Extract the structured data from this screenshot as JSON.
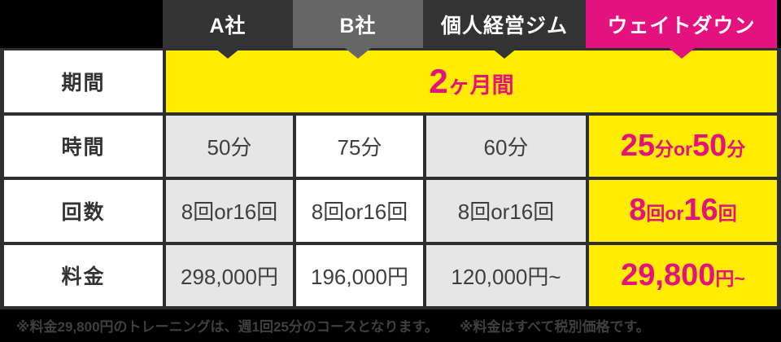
{
  "colors": {
    "page_bg": "#000000",
    "grid_line": "#2e2e2e",
    "header_dark": "#333333",
    "header_gray": "#666666",
    "pink": "#e3127e",
    "yellow": "#ffec00",
    "cell_gray": "#e6e6e6",
    "cell_white": "#ffffff",
    "text": "#3e3e3e",
    "footer_text": "#3f3f3f"
  },
  "header": {
    "columns": [
      {
        "label": "A社",
        "bg": "#333333",
        "text_color": "#ffffff"
      },
      {
        "label": "B社",
        "bg": "#666666",
        "text_color": "#ffffff"
      },
      {
        "label": "個人経営ジム",
        "bg": "#333333",
        "text_color": "#ffffff"
      },
      {
        "label": "ウェイトダウン",
        "bg": "#e3127e",
        "text_color": "#ffffff"
      }
    ]
  },
  "chart_data": {
    "type": "table",
    "title": "",
    "columns": [
      "A社",
      "B社",
      "個人経営ジム",
      "ウェイトダウン"
    ],
    "row_labels": [
      "期間",
      "時間",
      "回数",
      "料金"
    ],
    "rows": [
      {
        "label": "期間",
        "span_all": true,
        "values": [
          "2ヶ月間"
        ]
      },
      {
        "label": "時間",
        "values": [
          "50分",
          "75分",
          "60分",
          "25分or50分"
        ]
      },
      {
        "label": "回数",
        "values": [
          "8回or16回",
          "8回or16回",
          "8回or16回",
          "8回or16回"
        ]
      },
      {
        "label": "料金",
        "values": [
          "298,000円",
          "196,000円",
          "120,000円~",
          "29,800円~"
        ]
      }
    ],
    "highlight_column": "ウェイトダウン",
    "notes": [
      "※料金29,800円のトレーニングは、週1回25分のコースとなります。",
      "※料金はすべて税別価格です。"
    ]
  },
  "segments": {
    "kikan": [
      {
        "t": "2"
      },
      {
        "t": "ヶ月間"
      }
    ],
    "jikan_wd": [
      {
        "t": "25"
      },
      {
        "t": "分or"
      },
      {
        "t": "50"
      },
      {
        "t": "分"
      }
    ],
    "kaisu_wd": [
      {
        "t": "8"
      },
      {
        "t": "回or"
      },
      {
        "t": "16"
      },
      {
        "t": "回"
      }
    ],
    "ryokin_wd": [
      {
        "t": "29,800"
      },
      {
        "t": "円~"
      }
    ]
  }
}
